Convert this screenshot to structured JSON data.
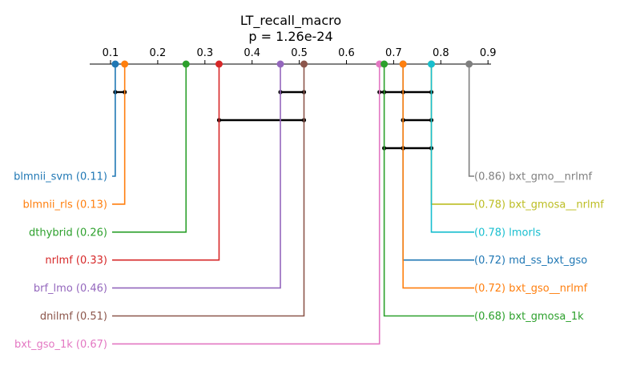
{
  "chart_data": {
    "type": "critical-difference-diagram",
    "title": "LT_recall_macro",
    "subtitle": "p = 1.26e-24",
    "axis": {
      "range": [
        0.05,
        0.91
      ],
      "ticks": [
        0.1,
        0.2,
        0.3,
        0.4,
        0.5,
        0.6,
        0.7,
        0.8,
        0.9
      ],
      "tick_labels": [
        "0.1",
        "0.2",
        "0.3",
        "0.4",
        "0.5",
        "0.6",
        "0.7",
        "0.8",
        "0.9"
      ],
      "position": "top"
    },
    "left_methods": [
      {
        "name": "blmnii_svm",
        "value": 0.11,
        "label": "blmnii_svm (0.11)",
        "color": "#1f77b4"
      },
      {
        "name": "blmnii_rls",
        "value": 0.13,
        "label": "blmnii_rls (0.13)",
        "color": "#ff7f0e"
      },
      {
        "name": "dthybrid",
        "value": 0.26,
        "label": "dthybrid (0.26)",
        "color": "#2ca02c"
      },
      {
        "name": "nrlmf",
        "value": 0.33,
        "label": "nrlmf (0.33)",
        "color": "#d62728"
      },
      {
        "name": "brf_lmo",
        "value": 0.46,
        "label": "brf_lmo (0.46)",
        "color": "#9467bd"
      },
      {
        "name": "dnilmf",
        "value": 0.51,
        "label": "dnilmf (0.51)",
        "color": "#8c564b"
      },
      {
        "name": "bxt_gso_1k",
        "value": 0.67,
        "label": "bxt_gso_1k (0.67)",
        "color": "#e377c2"
      }
    ],
    "right_methods": [
      {
        "name": "bxt_gmo__nrlmf",
        "value": 0.86,
        "label": "(0.86) bxt_gmo__nrlmf",
        "color": "#7f7f7f"
      },
      {
        "name": "bxt_gmosa__nrlmf",
        "value": 0.78,
        "label": "(0.78) bxt_gmosa__nrlmf",
        "color": "#bcbd22"
      },
      {
        "name": "lmorls",
        "value": 0.78,
        "label": "(0.78) lmorls",
        "color": "#17becf"
      },
      {
        "name": "md_ss_bxt_gso",
        "value": 0.72,
        "label": "(0.72) md_ss_bxt_gso",
        "color": "#1f77b4"
      },
      {
        "name": "bxt_gso__nrlmf",
        "value": 0.72,
        "label": "(0.72) bxt_gso__nrlmf",
        "color": "#ff7f0e"
      },
      {
        "name": "bxt_gmosa_1k",
        "value": 0.68,
        "label": "(0.68) bxt_gmosa_1k",
        "color": "#2ca02c"
      }
    ],
    "cliques": [
      [
        0.11,
        0.13
      ],
      [
        0.46,
        0.51
      ],
      [
        0.67,
        0.68,
        0.72,
        0.72,
        0.78
      ],
      [
        0.33,
        0.51
      ],
      [
        0.72,
        0.72,
        0.78
      ],
      [
        0.68,
        0.72,
        0.72,
        0.78
      ]
    ],
    "clique_color": "#000000"
  }
}
